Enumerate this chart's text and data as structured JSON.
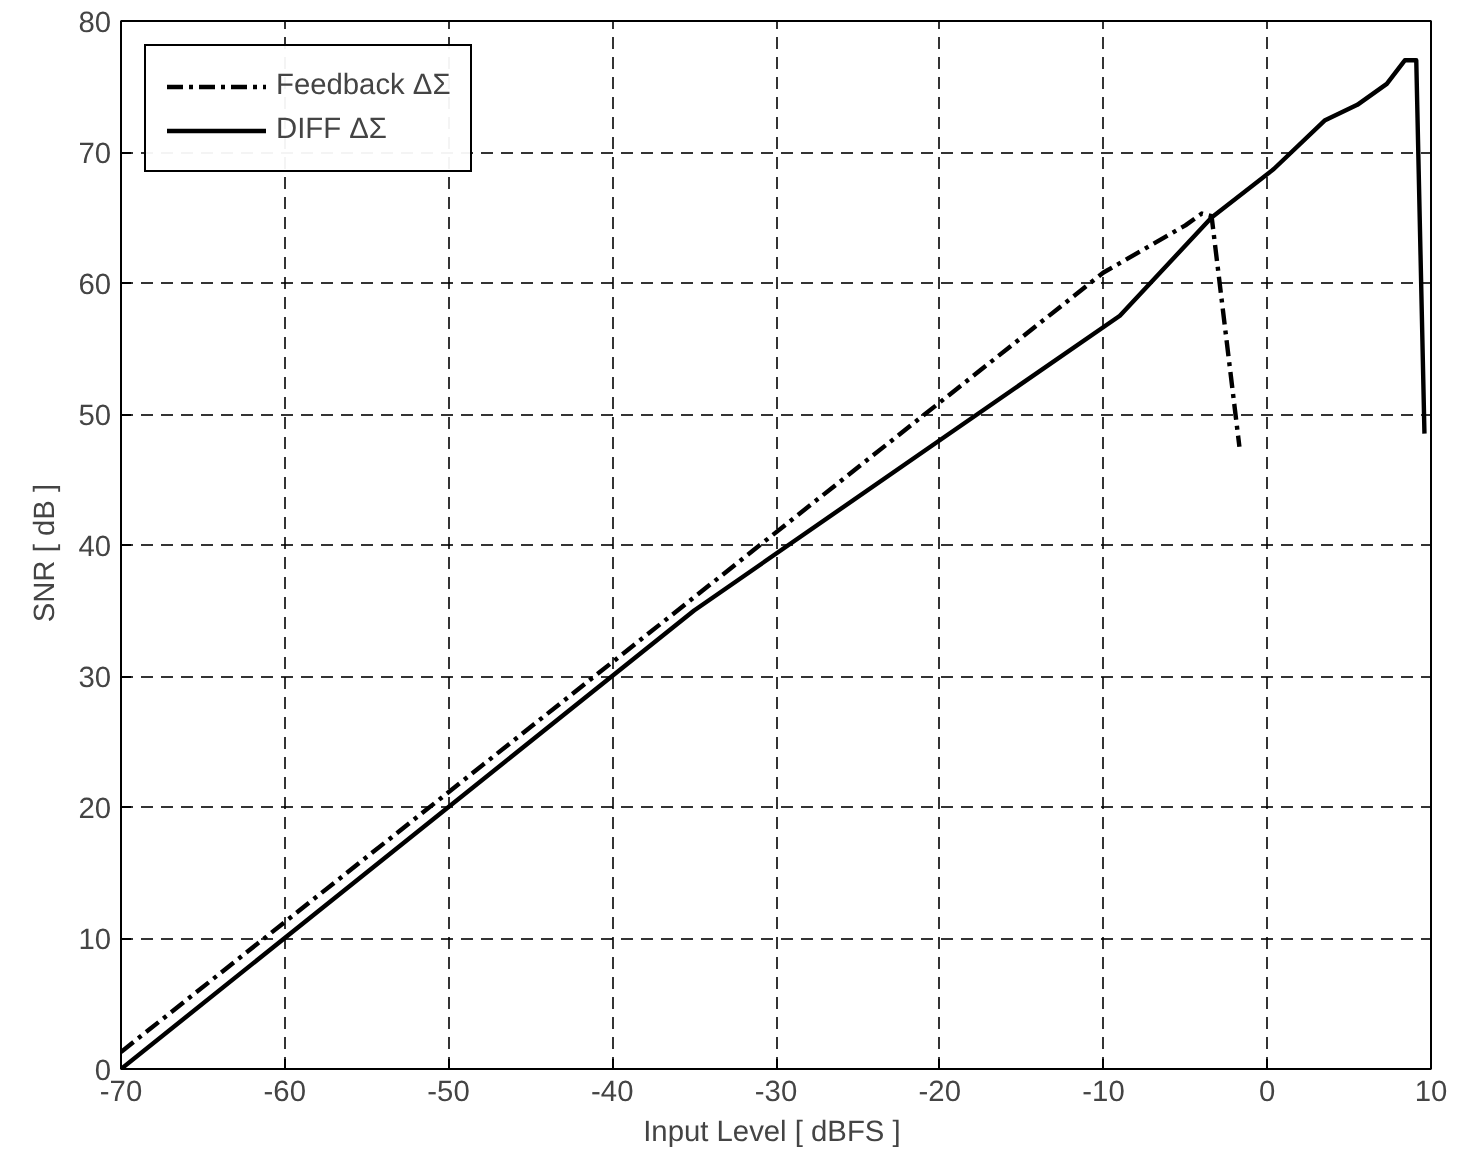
{
  "chart_data": {
    "type": "line",
    "xlabel": "Input Level  [ dBFS ]",
    "ylabel": "SNR   [ dB ]",
    "xlim": [
      -70,
      10
    ],
    "ylim": [
      0,
      80
    ],
    "xticks": [
      -70,
      -60,
      -50,
      -40,
      -30,
      -20,
      -10,
      0,
      10
    ],
    "yticks": [
      0,
      10,
      20,
      30,
      40,
      50,
      60,
      70,
      80
    ],
    "grid": true,
    "legend": "top left",
    "series": [
      {
        "name": "Feedback ΔΣ",
        "color": "#000000",
        "line_style": "dashdot",
        "x": [
          -70,
          -10,
          -5,
          -4,
          -3.4,
          -1.7
        ],
        "values": [
          1.3,
          60.8,
          64.4,
          65.3,
          65.1,
          47.5
        ]
      },
      {
        "name": "DIFF ΔΣ",
        "color": "#000000",
        "line_style": "solid",
        "x": [
          -70,
          -35,
          -20,
          -9,
          -3.4,
          0.4,
          3.5,
          5.5,
          7.3,
          8.4,
          9.1,
          9.6
        ],
        "values": [
          0,
          35,
          48,
          57.5,
          65,
          68.7,
          72.4,
          73.6,
          75.2,
          77,
          77,
          48.5
        ]
      }
    ]
  }
}
